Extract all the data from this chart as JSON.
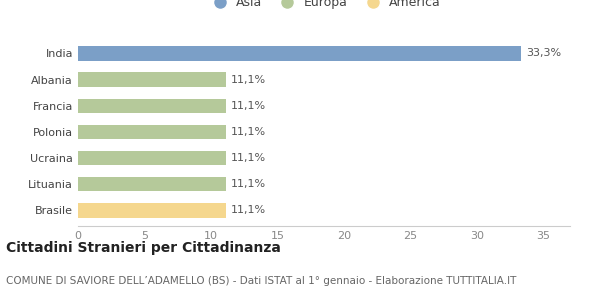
{
  "categories": [
    "Brasile",
    "Lituania",
    "Ucraina",
    "Polonia",
    "Francia",
    "Albania",
    "India"
  ],
  "values": [
    11.1,
    11.1,
    11.1,
    11.1,
    11.1,
    11.1,
    33.3
  ],
  "colors": [
    "#f5d78e",
    "#b5c99a",
    "#b5c99a",
    "#b5c99a",
    "#b5c99a",
    "#b5c99a",
    "#7b9fc7"
  ],
  "labels": [
    "11,1%",
    "11,1%",
    "11,1%",
    "11,1%",
    "11,1%",
    "11,1%",
    "33,3%"
  ],
  "legend_items": [
    {
      "label": "Asia",
      "color": "#7b9fc7"
    },
    {
      "label": "Europa",
      "color": "#b5c99a"
    },
    {
      "label": "America",
      "color": "#f5d78e"
    }
  ],
  "xlim": [
    0,
    37
  ],
  "xticks": [
    0,
    5,
    10,
    15,
    20,
    25,
    30,
    35
  ],
  "title": "Cittadini Stranieri per Cittadinanza",
  "subtitle": "COMUNE DI SAVIORE DELL’ADAMELLO (BS) - Dati ISTAT al 1° gennaio - Elaborazione TUTTITALIA.IT",
  "bg_color": "#ffffff",
  "bar_height": 0.55,
  "title_fontsize": 10,
  "subtitle_fontsize": 7.5,
  "label_fontsize": 8,
  "tick_fontsize": 8,
  "legend_fontsize": 9
}
